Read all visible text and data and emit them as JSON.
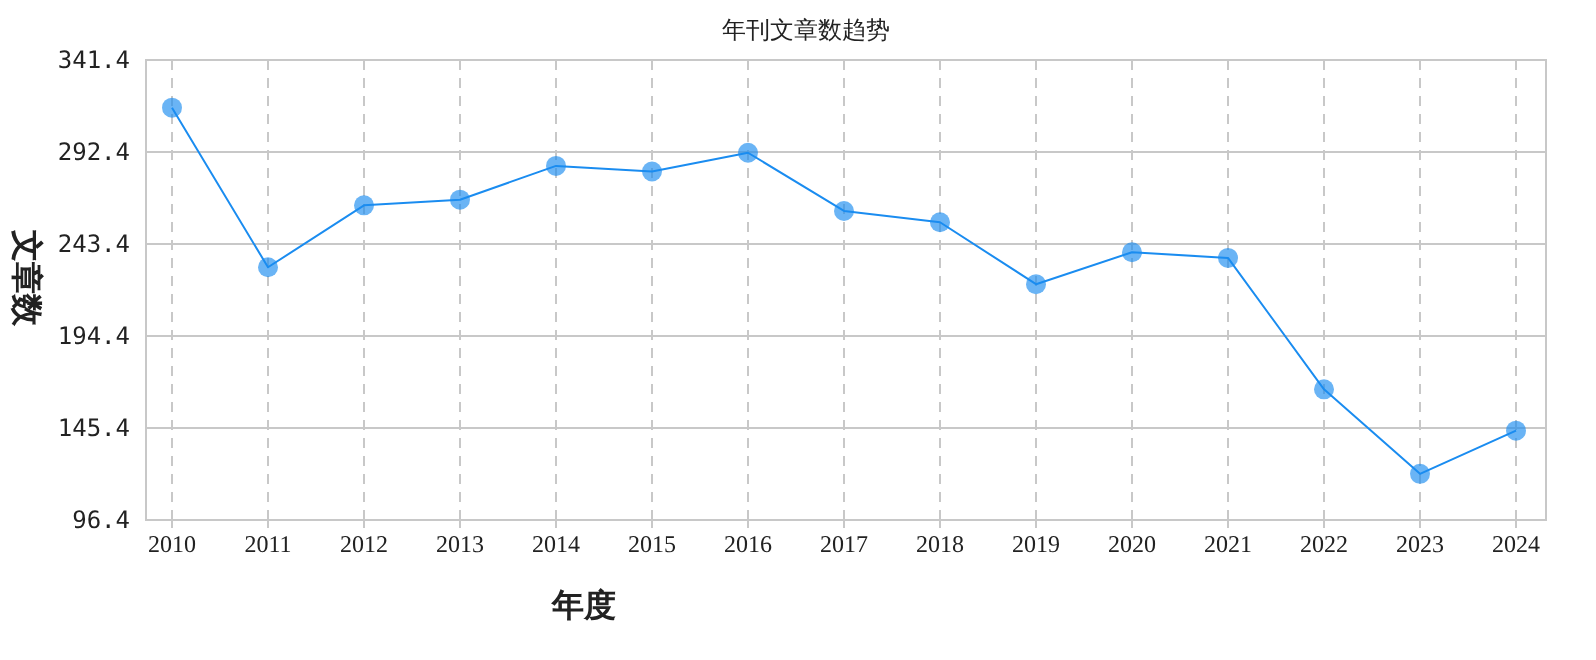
{
  "chart_data": {
    "type": "line",
    "title": "年刊文章数趋势",
    "xlabel": "年度",
    "ylabel": "文章数",
    "categories": [
      "2010",
      "2011",
      "2012",
      "2013",
      "2014",
      "2015",
      "2016",
      "2017",
      "2018",
      "2019",
      "2020",
      "2021",
      "2022",
      "2023",
      "2024"
    ],
    "series": [
      {
        "color": "#1a8cf0",
        "values": [
          316,
          231,
          264,
          267,
          285,
          282,
          292,
          261,
          255,
          222,
          239,
          236,
          166,
          121,
          144
        ]
      }
    ],
    "ylim": [
      96.4,
      341.4
    ],
    "yticks": [
      96.4,
      145.4,
      194.4,
      243.4,
      292.4,
      341.4
    ],
    "grid": true,
    "marker": "circle",
    "line_style": "solid"
  }
}
